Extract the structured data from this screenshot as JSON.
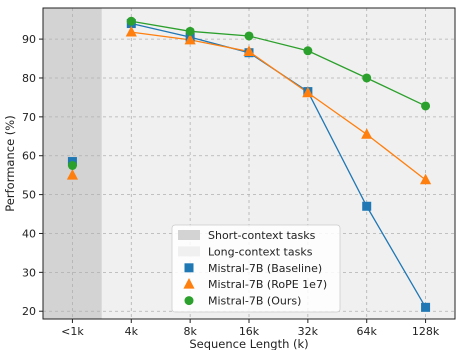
{
  "chart_data": {
    "type": "line",
    "xlabel": "Sequence Length (k)",
    "ylabel": "Performance (%)",
    "categories": [
      "<1k",
      "4k",
      "8k",
      "16k",
      "32k",
      "64k",
      "128k"
    ],
    "ylim": [
      18,
      98
    ],
    "yticks": [
      20,
      30,
      40,
      50,
      60,
      70,
      80,
      90
    ],
    "grid": true,
    "legend_position": "bottom-center",
    "regions": [
      {
        "name": "Short-context tasks",
        "categories": [
          "<1k"
        ],
        "color": "#d3d3d3"
      },
      {
        "name": "Long-context tasks",
        "categories": [
          "4k",
          "8k",
          "16k",
          "32k",
          "64k",
          "128k"
        ],
        "color": "#f0f0f0"
      }
    ],
    "series": [
      {
        "name": "Mistral-7B (Baseline)",
        "marker": "square",
        "color": "#1f77b4",
        "short_context_value": 58.5,
        "values": [
          null,
          94.0,
          90.5,
          86.5,
          76.5,
          47.0,
          21.0
        ]
      },
      {
        "name": "Mistral-7B (RoPE 1e7)",
        "marker": "triangle",
        "color": "#ff7f0e",
        "short_context_value": 55.0,
        "values": [
          null,
          91.8,
          89.8,
          86.8,
          76.2,
          65.5,
          53.8
        ]
      },
      {
        "name": "Mistral-7B (Ours)",
        "marker": "circle",
        "color": "#2ca02c",
        "short_context_value": 57.5,
        "values": [
          null,
          94.6,
          92.0,
          90.8,
          87.0,
          80.0,
          72.8
        ]
      }
    ]
  }
}
